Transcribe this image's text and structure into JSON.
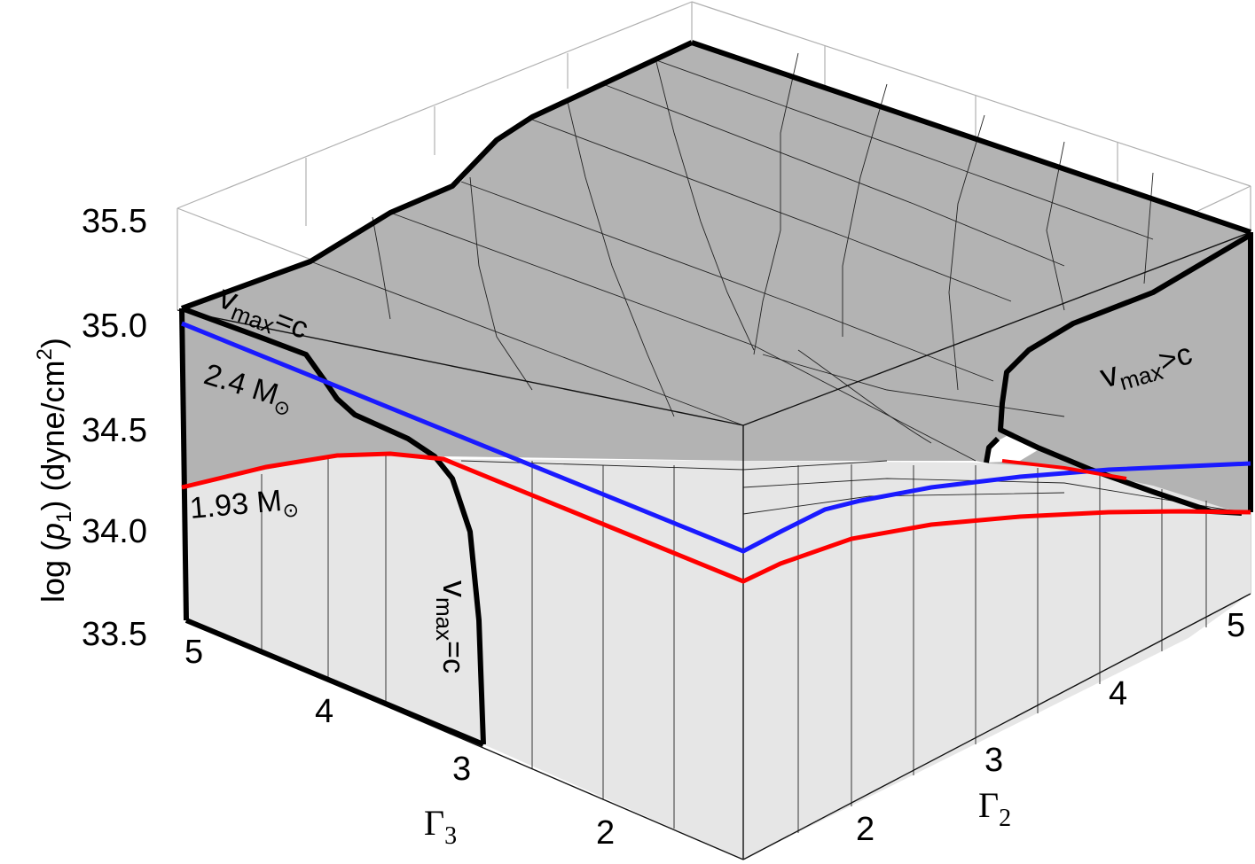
{
  "chart_data": {
    "type": "surface3d",
    "z_axis": {
      "label_parts": {
        "pre": "log (",
        "var": "p",
        "sub": "1",
        "mid": ") (dyne/cm",
        "sup": "2",
        "post": ")"
      },
      "ticks": [
        "35.5",
        "35.0",
        "34.5",
        "34.0",
        "33.5"
      ],
      "range": [
        33.5,
        35.6
      ]
    },
    "x_axis": {
      "symbol": "Γ",
      "sub": "3",
      "ticks": [
        "5",
        "4",
        "3",
        "2"
      ],
      "range": [
        1.4,
        5
      ]
    },
    "y_axis": {
      "symbol": "Γ",
      "sub": "2",
      "ticks": [
        "2",
        "3",
        "4",
        "5"
      ],
      "range": [
        1.4,
        5
      ]
    },
    "annotations": {
      "vmax_eq_c_top": {
        "v": "v",
        "sub": "max",
        "rel": "=c"
      },
      "vmax_eq_c_side": {
        "v": "v",
        "sub": "max",
        "rel": "=c"
      },
      "vmax_gt_c": {
        "v": "v",
        "sub": "max",
        "rel": ">c"
      },
      "mass_blue": {
        "value": "2.4 M",
        "sun": "⊙"
      },
      "mass_red": {
        "value": "1.93 M",
        "sun": "⊙"
      }
    },
    "series": [
      {
        "color": "#1a1aff",
        "mass_value": 2.4
      },
      {
        "color": "#ff0000",
        "mass_value": 1.93
      }
    ],
    "surface_colors": {
      "upper": "#b3b3b3",
      "lower": "#e6e6e6",
      "constraint": "#000000"
    }
  }
}
